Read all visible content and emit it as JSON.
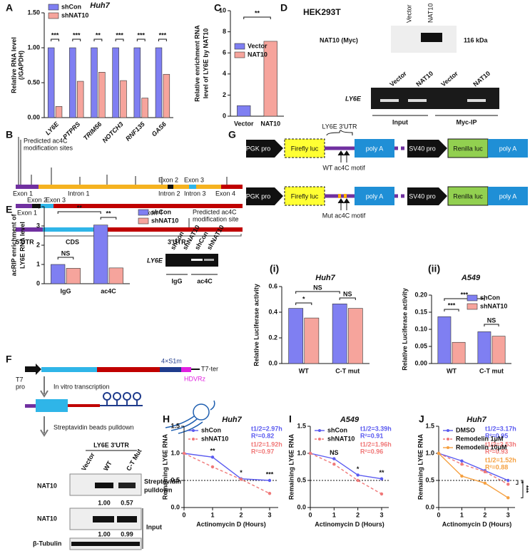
{
  "panel_labels": [
    "A",
    "B",
    "C",
    "D",
    "E",
    "F",
    "G",
    "H",
    "I",
    "J",
    "(i)",
    "(ii)"
  ],
  "chart_data": [
    {
      "type": "bar",
      "title": "Huh7",
      "y_label": [
        "Relative RNA level",
        "(/GAPDH)"
      ],
      "categories": [
        "LY6E",
        "PTPRS",
        "TRIM56",
        "NOTCH3",
        "RNF135",
        "GAS6"
      ],
      "series": [
        {
          "name": "shCon",
          "color": "#7f7ff2",
          "values": [
            1.0,
            1.0,
            1.0,
            1.0,
            1.0,
            1.0
          ]
        },
        {
          "name": "shNAT10",
          "color": "#f6a49c",
          "values": [
            0.16,
            0.52,
            0.65,
            0.53,
            0.28,
            0.62
          ]
        }
      ],
      "ylim": [
        0,
        1.5
      ],
      "yticks": [
        {
          "value": 0,
          "label": "0.00"
        },
        {
          "value": 0.5,
          "label": "0.50"
        },
        {
          "value": 1,
          "label": "1.00"
        },
        {
          "value": 1.5,
          "label": "1.50"
        }
      ],
      "legend": "upper left",
      "significance": [
        "***",
        "***",
        "**",
        "***",
        "***",
        "***"
      ]
    },
    {
      "type": "bar",
      "y_label": [
        "Relative enrichment RNA",
        "level of LY6E by NAT10"
      ],
      "categories": [
        "Vector",
        "NAT10"
      ],
      "values": [
        1.0,
        7.1
      ],
      "colors": [
        "#7f7ff2",
        "#f6a49c"
      ],
      "ylim": [
        0,
        10
      ],
      "yticks": [
        0,
        2,
        4,
        6,
        8,
        10
      ],
      "legend": "center left",
      "significance": [
        "**"
      ]
    },
    {
      "type": "bar",
      "y_label": [
        "acRIP enrichment of",
        "LY6E RNA level"
      ],
      "categories": [
        "IgG",
        "ac4C"
      ],
      "series": [
        {
          "name": "shCon",
          "color": "#7f7ff2",
          "values": [
            1.0,
            3.05
          ]
        },
        {
          "name": "shNAT10",
          "color": "#f6a49c",
          "values": [
            0.8,
            0.82
          ]
        }
      ],
      "ylim": [
        0,
        4
      ],
      "yticks": [
        0,
        1,
        2,
        3,
        4
      ],
      "legend": "outside right",
      "significance": [
        "NS",
        "**",
        "**"
      ]
    },
    {
      "type": "bar",
      "title": "Huh7",
      "y_label": [
        "Relative Luciferase activity"
      ],
      "categories": [
        "WT",
        "C-T mut"
      ],
      "series": [
        {
          "name": "shCon",
          "color": "#7f7ff2",
          "values": [
            0.43,
            0.465
          ]
        },
        {
          "name": "shNAT10",
          "color": "#f6a49c",
          "values": [
            0.355,
            0.43
          ]
        }
      ],
      "ylim": [
        0,
        0.6
      ],
      "yticks": [
        {
          "value": 0,
          "label": "0.0"
        },
        {
          "value": 0.2,
          "label": "0.2"
        },
        {
          "value": 0.4,
          "label": "0.4"
        },
        {
          "value": 0.6,
          "label": "0.6"
        }
      ],
      "significance": [
        "NS",
        "*",
        "NS"
      ]
    },
    {
      "type": "bar",
      "title": "A549",
      "y_label": [
        "Relative Luciferase activity"
      ],
      "categories": [
        "WT",
        "C-T mut"
      ],
      "series": [
        {
          "name": "shCon",
          "color": "#7f7ff2",
          "values": [
            0.137,
            0.093
          ]
        },
        {
          "name": "shNAT10",
          "color": "#f6a49c",
          "values": [
            0.062,
            0.08
          ]
        }
      ],
      "ylim": [
        0,
        0.2
      ],
      "yticks": [
        {
          "value": 0,
          "label": "0.00"
        },
        {
          "value": 0.05,
          "label": "0.05"
        },
        {
          "value": 0.1,
          "label": "0.10"
        },
        {
          "value": 0.15,
          "label": "0.15"
        },
        {
          "value": 0.2,
          "label": "0.20"
        }
      ],
      "legend": "upper right",
      "significance": [
        "***",
        "***",
        "NS"
      ]
    },
    {
      "type": "line",
      "title": "Huh7",
      "x_label": "Actinomycin D (Hours)",
      "y_label": [
        "Remaining LY6E RNA"
      ],
      "x": [
        0,
        1,
        2,
        3
      ],
      "xlim": [
        0,
        3.3
      ],
      "xticks": [
        0,
        1,
        2,
        3
      ],
      "ylim": [
        0,
        1.5
      ],
      "yticks": [
        {
          "value": 0,
          "label": "0.0"
        },
        {
          "value": 0.5,
          "label": "0.5"
        },
        {
          "value": 1,
          "label": "1.0"
        },
        {
          "value": 1.5,
          "label": "1.5"
        }
      ],
      "ref_line": 0.5,
      "legend": "upper left",
      "series": [
        {
          "name": "shCon",
          "color": "#5b5bf0",
          "line_style": "solid",
          "values": [
            1,
            0.93,
            0.53,
            0.5
          ],
          "stats": [
            "t1/2=2.97h",
            "R²=0.82"
          ]
        },
        {
          "name": "shNAT10",
          "color": "#f07878",
          "line_style": "dashed",
          "values": [
            1,
            0.75,
            0.52,
            0.26
          ],
          "stats": [
            "t1/2=1.92h",
            "R²=0.97"
          ]
        }
      ],
      "significance": [
        "**",
        "*",
        "***"
      ]
    },
    {
      "type": "line",
      "title": "A549",
      "x_label": "Actinomycin D (Hours)",
      "y_label": [
        "Remaining LY6E RNA"
      ],
      "x": [
        0,
        1,
        2,
        3
      ],
      "xlim": [
        0,
        3.3
      ],
      "xticks": [
        0,
        1,
        2,
        3
      ],
      "ylim": [
        0,
        1.5
      ],
      "yticks": [
        {
          "value": 0,
          "label": "0.0"
        },
        {
          "value": 0.5,
          "label": "0.5"
        },
        {
          "value": 1,
          "label": "1.0"
        },
        {
          "value": 1.5,
          "label": "1.5"
        }
      ],
      "ref_line": 0.5,
      "legend": "upper left",
      "series": [
        {
          "name": "shCon",
          "color": "#5b5bf0",
          "line_style": "solid",
          "values": [
            1,
            0.9,
            0.6,
            0.53
          ],
          "stats": [
            "t1/2=3.39h",
            "R²=0.91"
          ]
        },
        {
          "name": "shNAT10",
          "color": "#f07878",
          "line_style": "dashed",
          "values": [
            1,
            0.8,
            0.5,
            0.25
          ],
          "stats": [
            "t1/2=1.96h",
            "R²=0.96"
          ]
        }
      ],
      "significance": [
        "NS",
        "*",
        "**"
      ]
    },
    {
      "type": "line",
      "title": "Huh7",
      "x_label": "Actinomycin D (Hours)",
      "y_label": [
        "Remaining LY6E RNA"
      ],
      "x": [
        0,
        1,
        2,
        3
      ],
      "xlim": [
        0,
        3.3
      ],
      "xticks": [
        0,
        1,
        2,
        3
      ],
      "ylim": [
        0,
        1.5
      ],
      "yticks": [
        {
          "value": 0,
          "label": "0.0"
        },
        {
          "value": 0.5,
          "label": "0.5"
        },
        {
          "value": 1,
          "label": "1.0"
        },
        {
          "value": 1.5,
          "label": "1.5"
        }
      ],
      "ref_line": 0.5,
      "legend": "upper left",
      "series": [
        {
          "name": "DMSO",
          "color": "#5b5bf0",
          "line_style": "solid",
          "values": [
            1,
            0.86,
            0.68,
            0.5
          ],
          "stats": [
            "t1/2=3.17h",
            "R²=0.95"
          ]
        },
        {
          "name": "Remodelin 1μM",
          "color": "#f07878",
          "line_style": "dashed",
          "values": [
            1,
            0.8,
            0.66,
            0.43
          ],
          "stats": [
            "t1/2=2.53h",
            "R²=0.93"
          ]
        },
        {
          "name": "Remodelin 10μM",
          "color": "#f5a040",
          "line_style": "solid",
          "values": [
            1,
            0.58,
            0.45,
            0.18
          ],
          "stats": [
            "t1/2=1.52h",
            "R²=0.88"
          ]
        }
      ],
      "significance": [
        "*",
        "***"
      ]
    }
  ],
  "diagram_b": {
    "sites_label": [
      "Predicted ac4C",
      "modification sites"
    ],
    "row1": [
      "Exon 1",
      "Intron 1",
      "Exon 2",
      "Exon 3",
      "Intron 2",
      "Intron 3",
      "Exon 4"
    ],
    "row2": [
      "Exon 2",
      "Exon 3",
      "Exon 1",
      "Exon 4"
    ],
    "site_label": [
      "Predicted ac4C",
      "modification site"
    ],
    "row3": [
      "5'UTR",
      "CDS",
      "3'UTR"
    ]
  },
  "blot_d": {
    "cell_line": "HEK293T",
    "lanes_top": [
      "Vector",
      "NAT10"
    ],
    "band_label": "NAT10 (Myc)",
    "size": "116 kDa",
    "lanes_bottom": [
      "Vector",
      "NAT10",
      "Vector",
      "NAT10"
    ],
    "gene": "LY6E",
    "groups": [
      "Input",
      "Myc-IP"
    ]
  },
  "gel_e": {
    "lanes": [
      "shCon",
      "shNAT10",
      "shCon",
      "shNAT10"
    ],
    "gene": "LY6E",
    "groups": [
      "IgG",
      "ac4C"
    ]
  },
  "diagram_f": {
    "t7_pro": [
      "T7",
      "pro"
    ],
    "s1m": "4×S1m",
    "hdvrz": "HDVRz",
    "t7_ter": "T7-ter",
    "step1": "In vitro transcription",
    "step2": "Streptavidin beads pulldown",
    "blot": {
      "header": "LY6E 3'UTR",
      "lanes": [
        "Vector",
        "WT",
        "C-T Mut"
      ],
      "rows": [
        {
          "protein": "NAT10",
          "label": [
            "Streptavidin",
            "pulldown"
          ],
          "quant": [
            "1.00",
            "0.57"
          ]
        },
        {
          "protein": "NAT10",
          "label": "Input",
          "quant": [
            "1.00",
            "0.99"
          ]
        },
        {
          "protein": "β-Tubulin"
        }
      ]
    }
  },
  "diagram_g": {
    "utr_label": "LY6E 3'UTR",
    "construct_wt": [
      "PGK pro",
      "Firefly luc",
      "poly A",
      "SV40 pro",
      "Renilla luc",
      "poly A"
    ],
    "wt_motif": "WT ac4C motif",
    "construct_mut": [
      "PGK pro",
      "Firefly luc",
      "poly A",
      "SV40 pro",
      "Renilla luc",
      "poly A"
    ],
    "mut_motif": "Mut ac4C motif"
  }
}
